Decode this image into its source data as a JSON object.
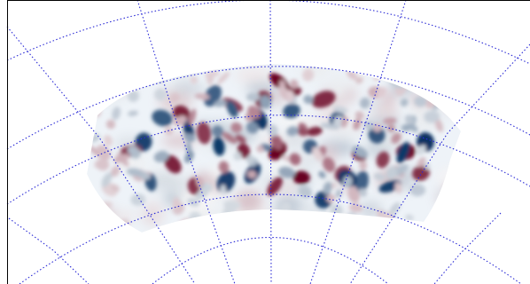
{
  "figure": {
    "colormap": {
      "low": "#053061",
      "mid": "#f7f7f7",
      "high": "#67001f"
    },
    "graticule_color": "#2b2bd6",
    "frame_color": "#000000",
    "background": "#ffffff",
    "mask_color": "#ffffff"
  }
}
